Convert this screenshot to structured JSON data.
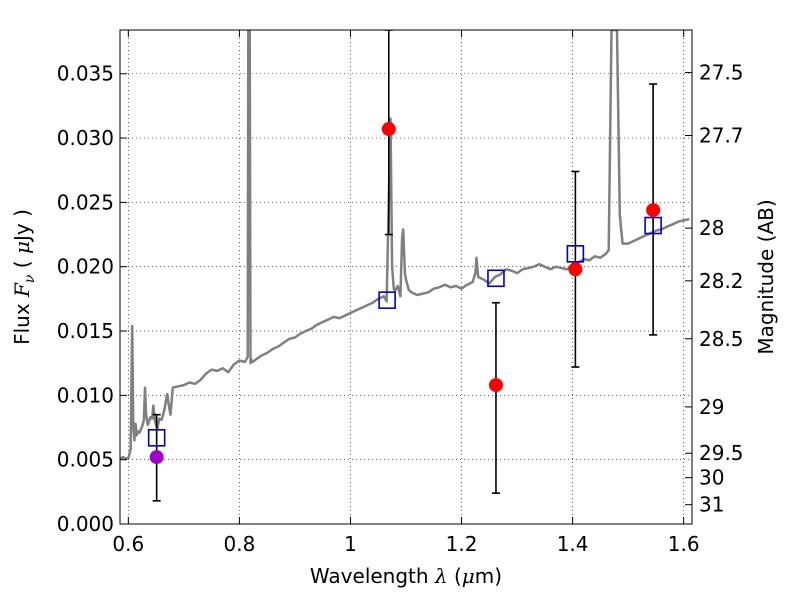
{
  "chart_data": {
    "type": "scatter",
    "xlabel": "Wavelength  λ (μm)",
    "ylabel": "Flux  F_ν  ( μJy )",
    "y2label": "Magnitude (AB)",
    "xlim": [
      0.585,
      1.615
    ],
    "ylim": [
      0.0,
      0.0384
    ],
    "x_ticks": [
      0.6,
      0.8,
      1.0,
      1.2,
      1.4,
      1.6
    ],
    "x_tick_labels": [
      "0.6",
      "0.8",
      "1",
      "1.2",
      "1.4",
      "1.6"
    ],
    "y_ticks": [
      0.0,
      0.005,
      0.01,
      0.015,
      0.02,
      0.025,
      0.03,
      0.035
    ],
    "y_tick_labels": [
      "0.000",
      "0.005",
      "0.010",
      "0.015",
      "0.020",
      "0.025",
      "0.030",
      "0.035"
    ],
    "y2_ticks": [
      {
        "label": "27.5",
        "flux": 0.0351
      },
      {
        "label": "27.7",
        "flux": 0.0302
      },
      {
        "label": "28",
        "flux": 0.023
      },
      {
        "label": "28.2",
        "flux": 0.0189
      },
      {
        "label": "28.5",
        "flux": 0.0144
      },
      {
        "label": "29",
        "flux": 0.0091
      },
      {
        "label": "29.5",
        "flux": 0.0055
      },
      {
        "label": "30",
        "flux": 0.0036
      },
      {
        "label": "31",
        "flux": 0.0015
      }
    ],
    "grid": true,
    "series": [
      {
        "kind": "spectrum",
        "color": "#808080",
        "x": [
          0.585,
          0.59,
          0.595,
          0.6,
          0.604,
          0.607,
          0.609,
          0.611,
          0.613,
          0.615,
          0.617,
          0.62,
          0.625,
          0.628,
          0.63,
          0.632,
          0.635,
          0.64,
          0.643,
          0.645,
          0.648,
          0.652,
          0.656,
          0.66,
          0.665,
          0.67,
          0.673,
          0.676,
          0.68,
          0.69,
          0.7,
          0.71,
          0.72,
          0.73,
          0.74,
          0.75,
          0.76,
          0.77,
          0.78,
          0.79,
          0.8,
          0.81,
          0.815,
          0.816,
          0.817,
          0.8185,
          0.82,
          0.821,
          0.824,
          0.83,
          0.84,
          0.85,
          0.86,
          0.87,
          0.88,
          0.89,
          0.9,
          0.91,
          0.92,
          0.93,
          0.94,
          0.95,
          0.96,
          0.97,
          0.98,
          0.99,
          1.0,
          1.01,
          1.02,
          1.03,
          1.04,
          1.05,
          1.06,
          1.065,
          1.07,
          1.072,
          1.075,
          1.078,
          1.08,
          1.085,
          1.09,
          1.093,
          1.095,
          1.098,
          1.1,
          1.105,
          1.11,
          1.12,
          1.13,
          1.14,
          1.15,
          1.16,
          1.17,
          1.18,
          1.19,
          1.2,
          1.21,
          1.22,
          1.225,
          1.227,
          1.23,
          1.24,
          1.25,
          1.26,
          1.27,
          1.28,
          1.29,
          1.3,
          1.31,
          1.32,
          1.33,
          1.34,
          1.35,
          1.36,
          1.37,
          1.38,
          1.39,
          1.4,
          1.41,
          1.42,
          1.43,
          1.44,
          1.45,
          1.46,
          1.465,
          1.47,
          1.475,
          1.48,
          1.485,
          1.49,
          1.5,
          1.51,
          1.52,
          1.53,
          1.54,
          1.55,
          1.56,
          1.57,
          1.58,
          1.59,
          1.6,
          1.61
        ],
        "y": [
          0.005,
          0.0052,
          0.0051,
          0.0051,
          0.0058,
          0.0154,
          0.0075,
          0.0065,
          0.0078,
          0.0069,
          0.0072,
          0.0071,
          0.0076,
          0.0081,
          0.0106,
          0.0085,
          0.0077,
          0.0083,
          0.0082,
          0.0092,
          0.008,
          0.0074,
          0.0082,
          0.0081,
          0.0089,
          0.0101,
          0.0092,
          0.0085,
          0.0106,
          0.0107,
          0.0108,
          0.011,
          0.0109,
          0.0112,
          0.0117,
          0.012,
          0.0119,
          0.0121,
          0.0118,
          0.0124,
          0.0127,
          0.0126,
          0.013,
          0.0384,
          0.0384,
          0.0384,
          0.0125,
          0.0128,
          0.0126,
          0.0128,
          0.0131,
          0.0133,
          0.0136,
          0.0138,
          0.0141,
          0.0144,
          0.0145,
          0.0148,
          0.015,
          0.0152,
          0.0155,
          0.0157,
          0.0159,
          0.0161,
          0.016,
          0.0162,
          0.0164,
          0.0166,
          0.0168,
          0.017,
          0.0172,
          0.0175,
          0.0177,
          0.0173,
          0.027,
          0.0315,
          0.02,
          0.0183,
          0.0181,
          0.0185,
          0.0177,
          0.0222,
          0.0229,
          0.0195,
          0.019,
          0.0182,
          0.018,
          0.0178,
          0.0179,
          0.018,
          0.0183,
          0.0184,
          0.0186,
          0.0184,
          0.0185,
          0.0183,
          0.0186,
          0.0188,
          0.0195,
          0.0207,
          0.0192,
          0.019,
          0.0187,
          0.0192,
          0.0194,
          0.0198,
          0.0197,
          0.0195,
          0.0198,
          0.0199,
          0.02,
          0.0202,
          0.02,
          0.0198,
          0.02,
          0.0199,
          0.0198,
          0.0201,
          0.0203,
          0.0206,
          0.0205,
          0.0208,
          0.0207,
          0.021,
          0.0213,
          0.0384,
          0.0384,
          0.0384,
          0.024,
          0.0218,
          0.0218,
          0.022,
          0.0222,
          0.0224,
          0.0226,
          0.0228,
          0.0229,
          0.0231,
          0.0233,
          0.0235,
          0.0236,
          0.0237
        ]
      },
      {
        "kind": "model-photometry",
        "marker": "square",
        "color": "#0000cc",
        "x": [
          0.651,
          1.066,
          1.262,
          1.405,
          1.545
        ],
        "y": [
          0.0067,
          0.0174,
          0.0191,
          0.021,
          0.0232
        ]
      },
      {
        "kind": "observed-photometry",
        "marker": "circle",
        "color": "#ff0000",
        "x": [
          0.651,
          1.069,
          1.262,
          1.405,
          1.545
        ],
        "y": [
          0.0052,
          0.0307,
          0.0108,
          0.0198,
          0.0244
        ],
        "yerr_low": [
          0.0018,
          0.0225,
          0.0024,
          0.0122,
          0.0147
        ],
        "yerr_high": [
          0.0085,
          0.0384,
          0.0172,
          0.0274,
          0.0342
        ],
        "point_colors": [
          "#a000c8",
          "#ff0000",
          "#ff0000",
          "#ff0000",
          "#ff0000"
        ]
      }
    ]
  }
}
